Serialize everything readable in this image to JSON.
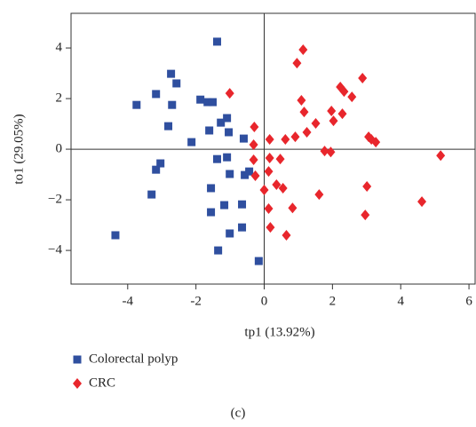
{
  "chart_data": {
    "type": "scatter",
    "caption": "(c)",
    "x_label": "tp1 (13.92%)",
    "y_label": "to1 (29.05%)",
    "xlim": [
      -5.66,
      6.18
    ],
    "ylim": [
      -5.33,
      5.37
    ],
    "xticks": [
      -4,
      -2,
      0,
      2,
      4,
      6
    ],
    "yticks": [
      {
        "value": -4,
        "label": "−4"
      },
      {
        "value": -2,
        "label": "−2"
      },
      0,
      2,
      4
    ],
    "series": [
      {
        "name": "Colorectal polyp",
        "color": "#2f4f9f",
        "marker": "square",
        "x": [
          -1.38,
          -2.73,
          -2.57,
          -3.17,
          -3.74,
          -2.7,
          -1.87,
          -1.66,
          -1.51,
          -1.09,
          -1.27,
          -1.61,
          -2.81,
          -2.13,
          -1.04,
          -0.6,
          -3.04,
          -3.17,
          -1.38,
          -1.09,
          -0.44,
          -0.57,
          -1.01,
          -1.56,
          -3.3,
          -1.17,
          -0.65,
          -1.56,
          -0.65,
          -1.01,
          -4.36,
          -1.35,
          -0.16
        ],
        "y": [
          4.25,
          2.98,
          2.6,
          2.18,
          1.75,
          1.75,
          1.96,
          1.86,
          1.86,
          1.23,
          1.05,
          0.74,
          0.91,
          0.28,
          0.67,
          0.42,
          -0.56,
          -0.81,
          -0.39,
          -0.32,
          -0.88,
          -1.02,
          -0.98,
          -1.54,
          -1.79,
          -2.21,
          -2.18,
          -2.49,
          -3.09,
          -3.33,
          -3.4,
          -4.0,
          -4.42
        ]
      },
      {
        "name": "CRC",
        "color": "#e8262c",
        "marker": "diamond",
        "x": [
          -1.01,
          1.14,
          0.96,
          2.23,
          2.34,
          2.57,
          2.88,
          1.09,
          1.17,
          1.51,
          1.97,
          2.03,
          2.29,
          1.25,
          0.91,
          0.62,
          0.16,
          -0.29,
          -0.31,
          3.06,
          3.14,
          3.27,
          1.77,
          1.95,
          0.16,
          0.47,
          -0.31,
          -0.26,
          0.13,
          0.36,
          0.55,
          0,
          1.61,
          3.01,
          0.83,
          0.13,
          4.62,
          2.96,
          0.18,
          0.65,
          5.17
        ],
        "y": [
          2.21,
          3.93,
          3.4,
          2.46,
          2.28,
          2.07,
          2.81,
          1.93,
          1.47,
          1.02,
          1.51,
          1.12,
          1.4,
          0.67,
          0.49,
          0.39,
          0.39,
          0.88,
          0.18,
          0.49,
          0.39,
          0.28,
          -0.07,
          -0.11,
          -0.35,
          -0.39,
          -0.42,
          -1.05,
          -0.88,
          -1.4,
          -1.54,
          -1.61,
          -1.79,
          -1.47,
          -2.32,
          -2.35,
          -2.07,
          -2.6,
          -3.09,
          -3.4,
          -0.25
        ]
      }
    ]
  }
}
